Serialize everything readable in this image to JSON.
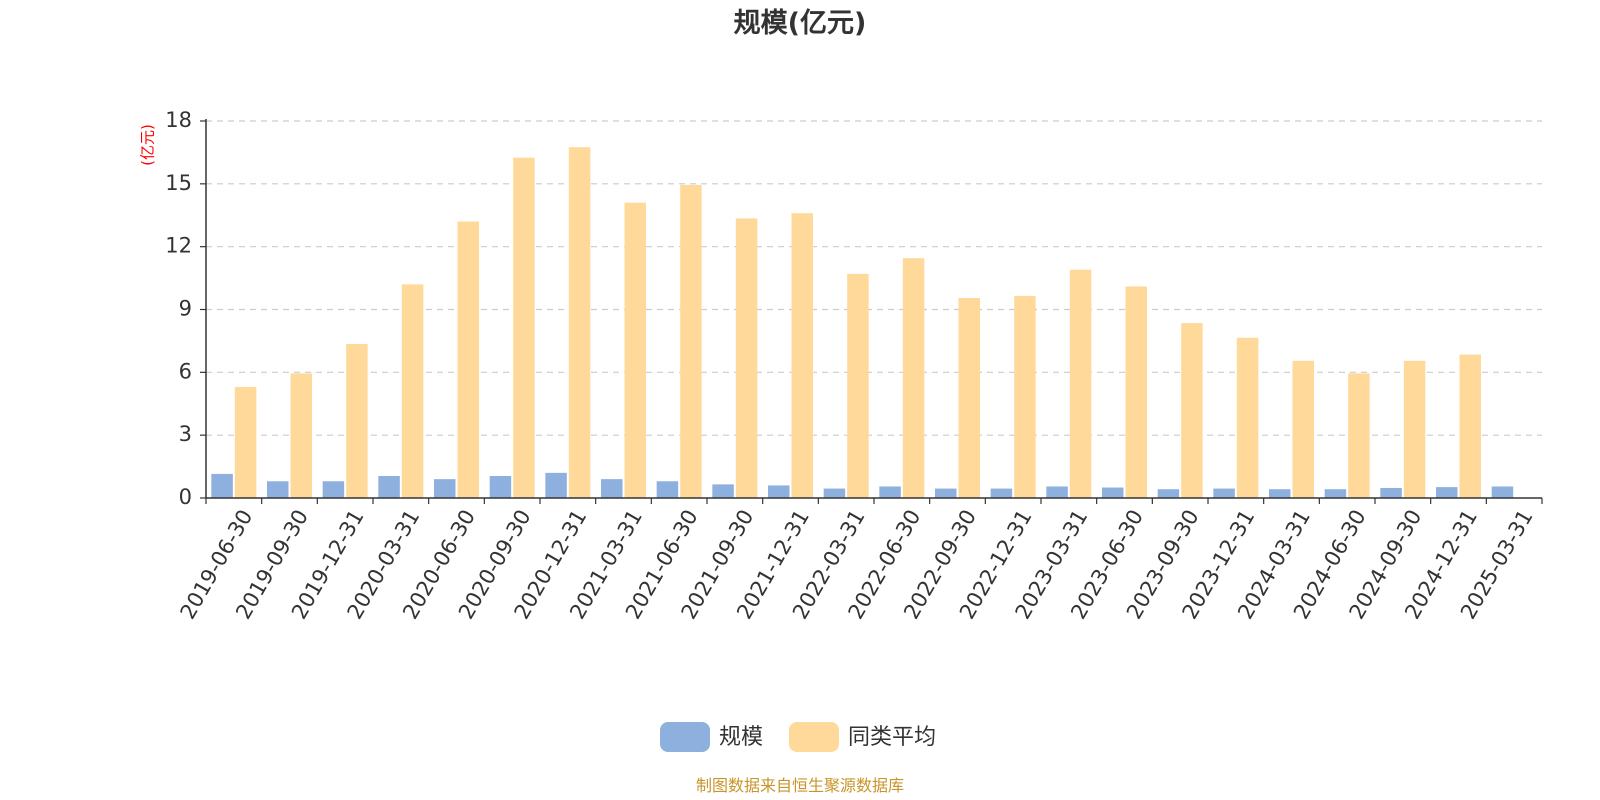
{
  "chart_data": {
    "type": "bar",
    "title": "规模(亿元)",
    "ylabel": "(亿元)",
    "xlabel": "",
    "ylim": [
      0,
      18
    ],
    "yticks": [
      0,
      3,
      6,
      9,
      12,
      15,
      18
    ],
    "grid": true,
    "legend_position": "bottom",
    "categories": [
      "2019-06-30",
      "2019-09-30",
      "2019-12-31",
      "2020-03-31",
      "2020-06-30",
      "2020-09-30",
      "2020-12-31",
      "2021-03-31",
      "2021-06-30",
      "2021-09-30",
      "2021-12-31",
      "2022-03-31",
      "2022-06-30",
      "2022-09-30",
      "2022-12-31",
      "2023-03-31",
      "2023-06-30",
      "2023-09-30",
      "2023-12-31",
      "2024-03-31",
      "2024-06-30",
      "2024-09-30",
      "2024-12-31",
      "2025-03-31"
    ],
    "series": [
      {
        "name": "规模",
        "color": "#8eb0de",
        "values": [
          1.15,
          0.8,
          0.8,
          1.05,
          0.9,
          1.05,
          1.2,
          0.9,
          0.8,
          0.65,
          0.6,
          0.45,
          0.55,
          0.45,
          0.45,
          0.55,
          0.5,
          0.42,
          0.45,
          0.42,
          0.42,
          0.48,
          0.52,
          0.55
        ]
      },
      {
        "name": "同类平均",
        "color": "#ffd99a",
        "values": [
          5.3,
          5.95,
          7.35,
          10.2,
          13.2,
          16.25,
          16.75,
          14.1,
          14.95,
          13.35,
          13.6,
          10.7,
          11.45,
          9.55,
          9.65,
          10.9,
          10.1,
          8.35,
          7.65,
          6.55,
          5.95,
          6.55,
          6.85,
          null
        ]
      }
    ]
  },
  "source_note": "制图数据来自恒生聚源数据库"
}
